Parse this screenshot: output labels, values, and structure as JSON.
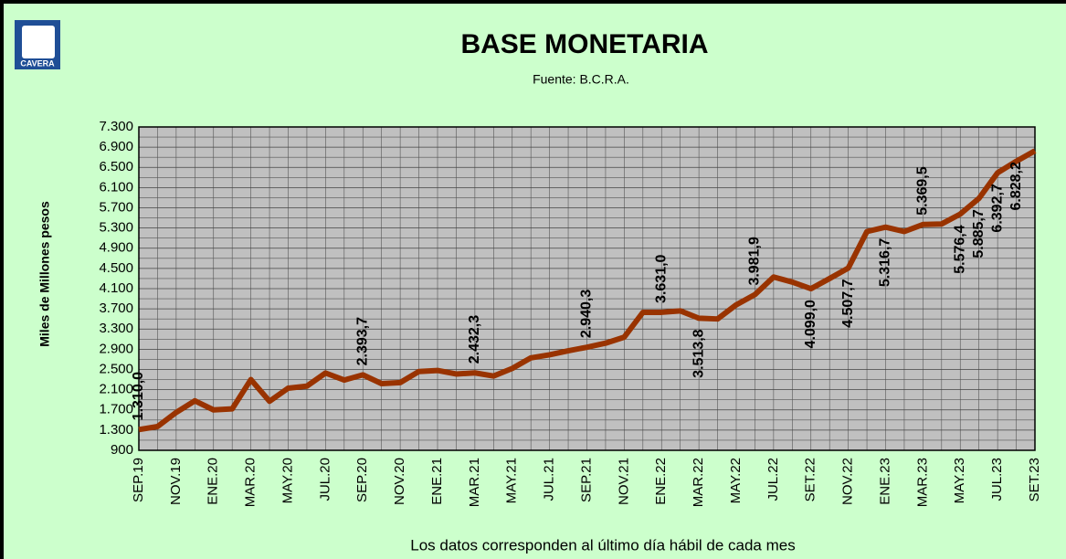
{
  "chart_data": {
    "type": "line",
    "logo_text": "CAVERA",
    "title": "BASE MONETARIA",
    "subtitle": "Fuente: B.C.R.A.",
    "ylabel": "Miles de Millones  pesos",
    "xlabel": "Los datos corresponden al último día hábil de cada mes",
    "categories": [
      "SEP.19",
      null,
      "NOV.19",
      null,
      "ENE.20",
      null,
      "MAR.20",
      null,
      "MAY.20",
      null,
      "JUL.20",
      null,
      "SEP.20",
      null,
      "NOV.20",
      null,
      "ENE.21",
      null,
      "MAR.21",
      null,
      "MAY.21",
      null,
      "JUL.21",
      null,
      "SEP.21",
      null,
      "NOV.21",
      null,
      "ENE.22",
      null,
      "MAR.22",
      null,
      "MAY.22",
      null,
      "JUL.22",
      null,
      "SET.22",
      null,
      "NOV.22",
      null,
      "ENE.23",
      null,
      "MAR.23",
      null,
      "MAY.23",
      null,
      "JUL.23",
      null,
      "SET.23"
    ],
    "series": [
      {
        "name": "Base monetaria",
        "color": "#993300",
        "values": [
          1310,
          1370,
          1650,
          1880,
          1700,
          1720,
          2300,
          1870,
          2130,
          2170,
          2430,
          2290,
          2393.7,
          2220,
          2240,
          2460,
          2480,
          2410,
          2432.3,
          2370,
          2520,
          2730,
          2790,
          2870,
          2940.3,
          3020,
          3140,
          3630,
          3631,
          3660,
          3513.8,
          3500,
          3780,
          3981.9,
          4330,
          4230,
          4099,
          4300,
          4507.7,
          5230,
          5316.7,
          5230,
          5369.5,
          5380,
          5576.4,
          5885.7,
          6392.7,
          6620,
          6828.2
        ],
        "value_labels": [
          "1.310,0",
          null,
          null,
          null,
          null,
          null,
          null,
          null,
          null,
          null,
          null,
          null,
          "2.393,7",
          null,
          null,
          null,
          null,
          null,
          "2.432,3",
          null,
          null,
          null,
          null,
          null,
          "2.940,3",
          null,
          null,
          null,
          "3.631,0",
          null,
          "3.513,8",
          null,
          null,
          "3.981,9",
          null,
          null,
          "4.099,0",
          null,
          "4.507,7",
          null,
          "5.316,7",
          null,
          "5.369,5",
          null,
          "5.576,4",
          "5.885,7",
          "6.392,7",
          null,
          "6.828,2"
        ]
      }
    ],
    "ylim": [
      900,
      7300
    ],
    "yticks": [
      900,
      {
        "value": 1300,
        "label": "1.300"
      },
      {
        "value": 1700,
        "label": "1.700"
      },
      {
        "value": 2100,
        "label": "2.100"
      },
      {
        "value": 2500,
        "label": "2.500"
      },
      {
        "value": 2900,
        "label": "2.900"
      },
      {
        "value": 3300,
        "label": "3.300"
      },
      {
        "value": 3700,
        "label": "3.700"
      },
      {
        "value": 4100,
        "label": "4.100"
      },
      {
        "value": 4500,
        "label": "4.500"
      },
      {
        "value": 4900,
        "label": "4.900"
      },
      {
        "value": 5300,
        "label": "5.300"
      },
      {
        "value": 5700,
        "label": "5.700"
      },
      {
        "value": 6100,
        "label": "6.100"
      },
      {
        "value": 6500,
        "label": "6.500"
      },
      {
        "value": 6900,
        "label": "6.900"
      },
      {
        "value": 7300,
        "label": "7.300"
      }
    ],
    "yticks_minor": [
      1100,
      1500,
      1900,
      2300,
      2700,
      3100,
      3500,
      3900,
      4300,
      4700,
      5100,
      5500,
      5900,
      6300,
      6700,
      7100
    ],
    "grid": true
  }
}
